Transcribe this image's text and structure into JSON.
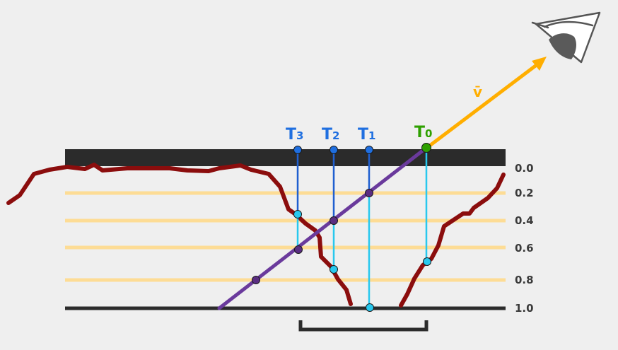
{
  "depth_labels": [
    "0.0",
    "0.2",
    "0.4",
    "0.6",
    "0.8",
    "1.0"
  ],
  "t_labels": [
    {
      "main": "T",
      "sub": "0"
    },
    {
      "main": "T",
      "sub": "1"
    },
    {
      "main": "T",
      "sub": "2"
    },
    {
      "main": "T",
      "sub": "3"
    }
  ],
  "view_vector_label": "v̄",
  "colors": {
    "background": "#efefef",
    "surface_bar": "#2b2b2b",
    "base_line": "#2b2b2b",
    "depth_lines": "#fddc95",
    "height_profile": "#8b0d0d",
    "view_ray": "#6a3a9c",
    "view_vector": "#ffae00",
    "t0": "#2ea000",
    "t_other": "#1f6fe0",
    "probe_lines": "#28c8ee",
    "probe_dark": "#1f5fd0",
    "eye": "#555555"
  },
  "icons": {
    "eye": "eye-icon"
  }
}
